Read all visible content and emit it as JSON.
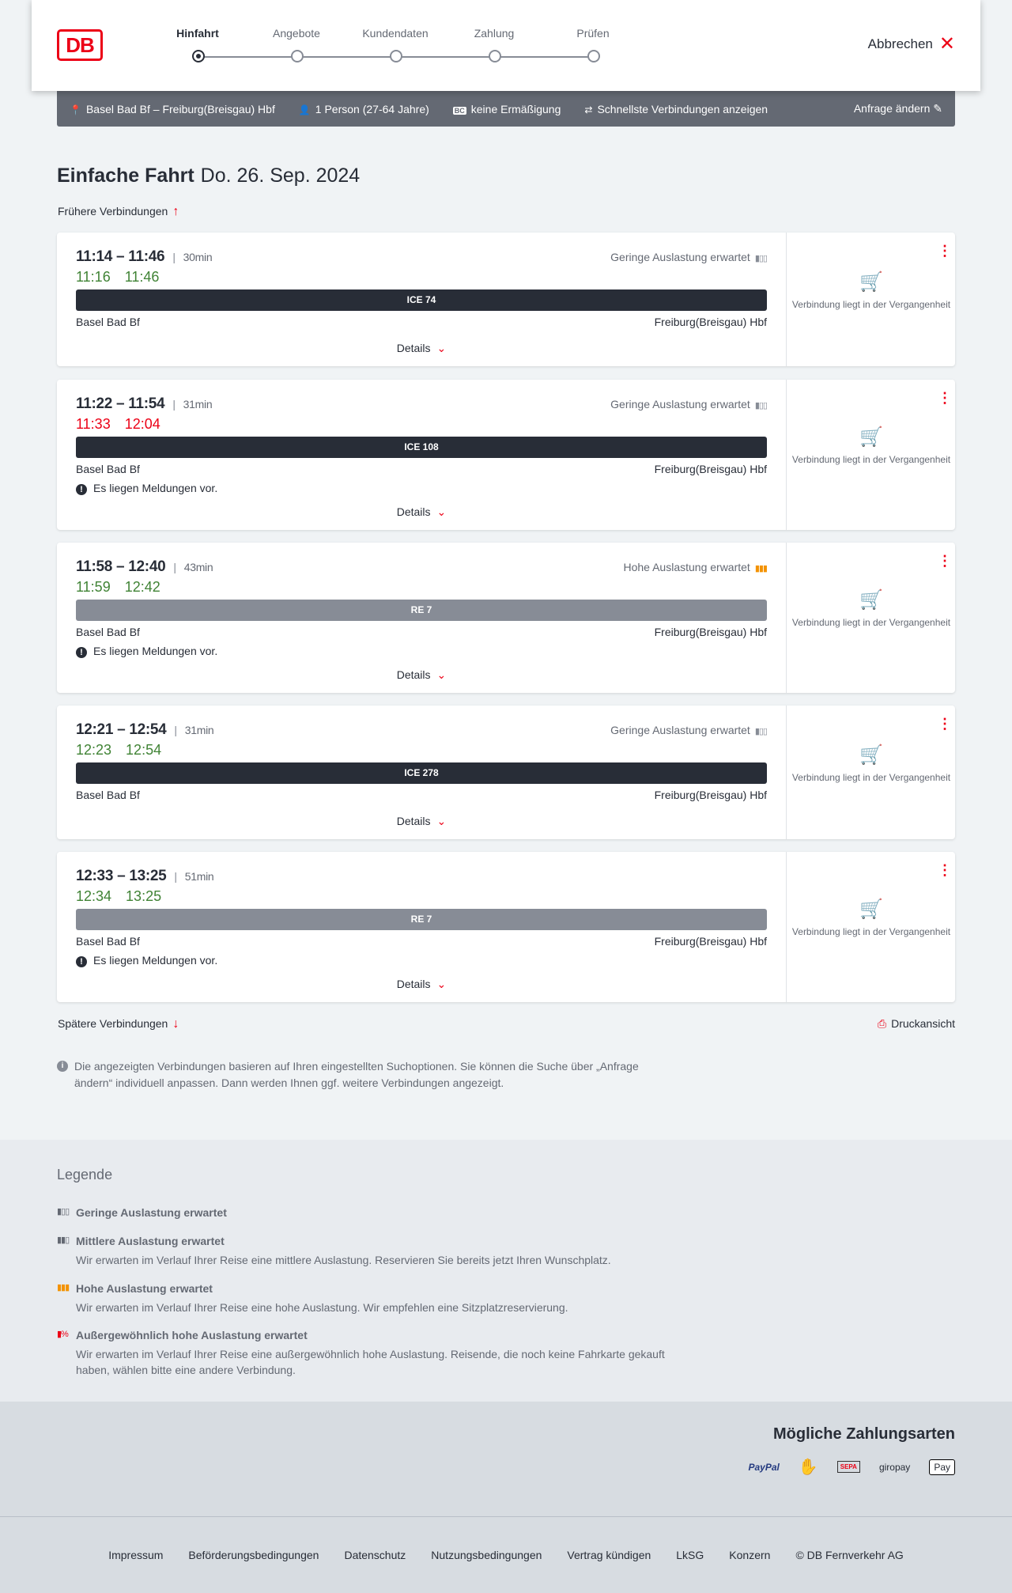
{
  "header": {
    "logo": "DB",
    "steps": [
      "Hinfahrt",
      "Angebote",
      "Kundendaten",
      "Zahlung",
      "Prüfen"
    ],
    "active_step": 0,
    "cancel": "Abbrechen"
  },
  "summary": {
    "route": "Basel Bad Bf – Freiburg(Breisgau) Hbf",
    "passengers": "1 Person (27-64 Jahre)",
    "discount_badge": "BC",
    "discount": "keine Ermäßigung",
    "option": "Schnellste Verbindungen anzeigen",
    "edit": "Anfrage ändern"
  },
  "title": {
    "type": "Einfache Fahrt",
    "date": "Do. 26. Sep. 2024"
  },
  "earlier": "Frühere Verbindungen",
  "later": "Spätere Verbindungen",
  "print": "Druckansicht",
  "connections": [
    {
      "times": "11:14 – 11:46",
      "duration": "30min",
      "rt_dep": "11:16",
      "rt_arr": "11:46",
      "rt_dep_late": false,
      "rt_arr_late": false,
      "load": "Geringe Auslastung erwartet",
      "load_level": "low",
      "train": "ICE 74",
      "train_color": "#282d37",
      "from": "Basel Bad Bf",
      "to": "Freiburg(Breisgau) Hbf",
      "message": "",
      "details": "Details",
      "status": "Verbindung liegt in der Vergangenheit"
    },
    {
      "times": "11:22 – 11:54",
      "duration": "31min",
      "rt_dep": "11:33",
      "rt_arr": "12:04",
      "rt_dep_late": true,
      "rt_arr_late": true,
      "load": "Geringe Auslastung erwartet",
      "load_level": "low",
      "train": "ICE 108",
      "train_color": "#282d37",
      "from": "Basel Bad Bf",
      "to": "Freiburg(Breisgau) Hbf",
      "message": "Es liegen Meldungen vor.",
      "details": "Details",
      "status": "Verbindung liegt in der Vergangenheit"
    },
    {
      "times": "11:58 – 12:40",
      "duration": "43min",
      "rt_dep": "11:59",
      "rt_arr": "12:42",
      "rt_dep_late": false,
      "rt_arr_late": false,
      "load": "Hohe Auslastung erwartet",
      "load_level": "high",
      "train": "RE 7",
      "train_color": "#878c96",
      "from": "Basel Bad Bf",
      "to": "Freiburg(Breisgau) Hbf",
      "message": "Es liegen Meldungen vor.",
      "details": "Details",
      "status": "Verbindung liegt in der Vergangenheit"
    },
    {
      "times": "12:21 – 12:54",
      "duration": "31min",
      "rt_dep": "12:23",
      "rt_arr": "12:54",
      "rt_dep_late": false,
      "rt_arr_late": false,
      "load": "Geringe Auslastung erwartet",
      "load_level": "low",
      "train": "ICE 278",
      "train_color": "#282d37",
      "from": "Basel Bad Bf",
      "to": "Freiburg(Breisgau) Hbf",
      "message": "",
      "details": "Details",
      "status": "Verbindung liegt in der Vergangenheit"
    },
    {
      "times": "12:33 – 13:25",
      "duration": "51min",
      "rt_dep": "12:34",
      "rt_arr": "13:25",
      "rt_dep_late": false,
      "rt_arr_late": false,
      "load": "",
      "load_level": "",
      "train": "RE 7",
      "train_color": "#878c96",
      "from": "Basel Bad Bf",
      "to": "Freiburg(Breisgau) Hbf",
      "message": "Es liegen Meldungen vor.",
      "details": "Details",
      "status": "Verbindung liegt in der Vergangenheit"
    }
  ],
  "info": "Die angezeigten Verbindungen basieren auf Ihren eingestellten Suchoptionen. Sie können die Suche über „Anfrage ändern“ individuell anpassen. Dann werden Ihnen ggf. weitere Verbindungen angezeigt.",
  "legend": {
    "title": "Legende",
    "items": [
      {
        "label": "Geringe Auslastung erwartet",
        "text": "",
        "color": "#646973"
      },
      {
        "label": "Mittlere Auslastung erwartet",
        "text": "Wir erwarten im Verlauf Ihrer Reise eine mittlere Auslastung. Reservieren Sie bereits jetzt Ihren Wunschplatz.",
        "color": "#646973"
      },
      {
        "label": "Hohe Auslastung erwartet",
        "text": "Wir erwarten im Verlauf Ihrer Reise eine hohe Auslastung. Wir empfehlen eine Sitzplatzreservierung.",
        "color": "#f39200"
      },
      {
        "label": "Außergewöhnlich hohe Auslastung erwartet",
        "text": "Wir erwarten im Verlauf Ihrer Reise eine außergewöhnlich hohe Auslastung. Reisende, die noch keine Fahrkarte gekauft haben, wählen bitte eine andere Verbindung.",
        "color": "#ec0016"
      }
    ]
  },
  "payment": {
    "title": "Mögliche Zahlungsarten",
    "methods": [
      "PayPal",
      "credit-card-icon",
      "SEPA",
      "giropay",
      "Pay"
    ]
  },
  "footer": [
    "Impressum",
    "Beförderungsbedingungen",
    "Datenschutz",
    "Nutzungsbedingungen",
    "Vertrag kündigen",
    "LkSG",
    "Konzern",
    "© DB Fernverkehr AG"
  ]
}
